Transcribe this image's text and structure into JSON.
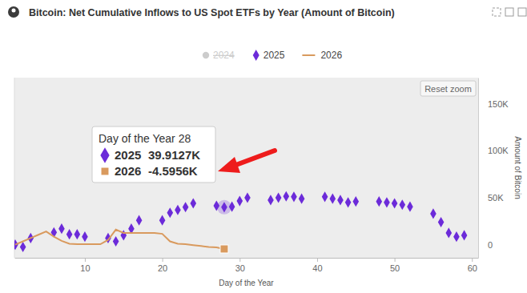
{
  "chart_data": {
    "type": "scatter",
    "title": "Bitcoin: Net Cumulative Inflows to US Spot ETFs by Year (Amount of Bitcoin)",
    "x_label": "Day of the Year",
    "y_label": "Amount of Bitcoin",
    "x": [
      1,
      2,
      3,
      4,
      5,
      6,
      7,
      8,
      9,
      10,
      11,
      12,
      13,
      14,
      15,
      16,
      17,
      18,
      19,
      20,
      21,
      22,
      23,
      24,
      25,
      26,
      27,
      28,
      29,
      30,
      31,
      32,
      33,
      34,
      35,
      36,
      37,
      38,
      39,
      40,
      41,
      42,
      43,
      44,
      45,
      46,
      47,
      48,
      49,
      50,
      51,
      52,
      53,
      54,
      55,
      56,
      57,
      58,
      59
    ],
    "series": [
      {
        "name": "2024",
        "type": "scatter",
        "marker": "circle",
        "color": "#cccccc",
        "values": [
          null,
          null,
          null,
          null,
          null,
          null,
          null,
          null,
          null,
          null,
          null,
          null,
          null,
          null,
          null,
          null,
          null,
          null,
          null,
          null,
          null,
          null,
          null,
          null,
          null,
          null,
          null,
          null,
          null,
          null,
          null,
          null,
          null,
          null,
          null,
          null,
          null,
          null,
          null,
          null,
          null,
          null,
          null,
          null,
          null,
          null,
          null,
          null,
          null,
          null,
          null,
          null,
          null,
          null,
          null,
          null,
          null,
          null,
          null
        ]
      },
      {
        "name": "2025",
        "type": "scatter",
        "marker": "diamond",
        "color": "#6c2bd9",
        "values": [
          0,
          -2500,
          7000,
          null,
          null,
          13000,
          17000,
          11000,
          11000,
          8500,
          null,
          null,
          7000,
          3500,
          10000,
          17000,
          26000,
          null,
          null,
          26000,
          34000,
          37000,
          40000,
          44000,
          null,
          null,
          41500,
          39912.7,
          40500,
          46500,
          50000,
          null,
          null,
          47500,
          50000,
          51500,
          51000,
          49000,
          null,
          null,
          51000,
          49000,
          47500,
          45000,
          46000,
          null,
          null,
          46000,
          45000,
          44000,
          42500,
          40500,
          null,
          null,
          33000,
          24000,
          12500,
          8500,
          10000
        ]
      },
      {
        "name": "2026",
        "type": "line",
        "line_style": "solid",
        "color": "#d99a5e",
        "values": [
          0,
          3500,
          7000,
          10500,
          14000,
          8500,
          4000,
          1000,
          500,
          500,
          500,
          500,
          5000,
          16000,
          12500,
          12500,
          12500,
          12500,
          12500,
          11500,
          3500,
          1000,
          500,
          -500,
          -1500,
          -2500,
          -3000,
          -4595.6,
          null,
          null,
          null,
          null,
          null,
          null,
          null,
          null,
          null,
          null,
          null,
          null,
          null,
          null,
          null,
          null,
          null,
          null,
          null,
          null,
          null,
          null,
          null,
          null,
          null,
          null,
          null,
          null,
          null,
          null,
          null
        ]
      }
    ],
    "xlim": [
      0.9,
      60.8
    ],
    "xticks": [
      10,
      20,
      30,
      40,
      50,
      60
    ],
    "ylim": [
      -14000,
      178000
    ],
    "yticks": [
      0,
      {
        "value": 50000,
        "label": "50K"
      },
      {
        "value": 100000,
        "label": "100K"
      },
      {
        "value": 150000,
        "label": "150K"
      }
    ],
    "grid": false,
    "legend": "top",
    "tooltip": {
      "title": "Day of the Year 28",
      "x": 28,
      "items": [
        {
          "name": "2025",
          "label": "39.9127K"
        },
        {
          "name": "2026",
          "label": "-4.5956K"
        }
      ]
    },
    "button": "Reset zoom"
  }
}
